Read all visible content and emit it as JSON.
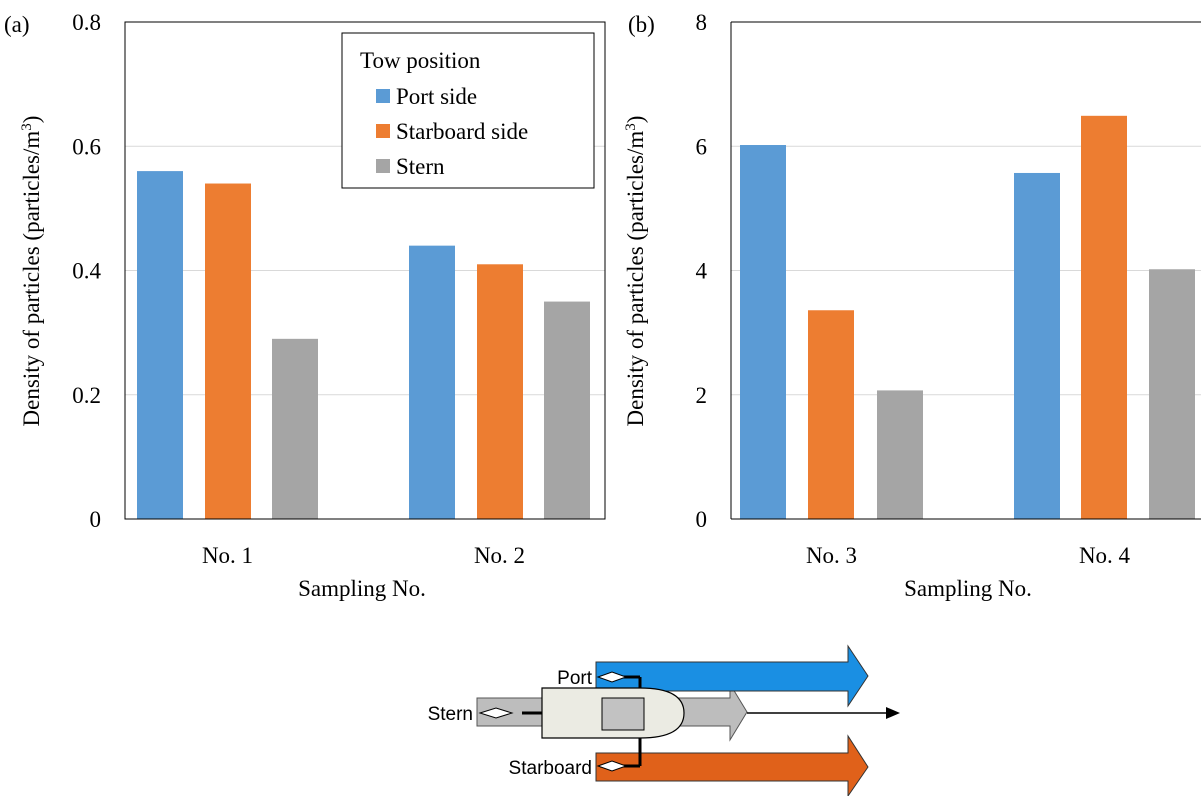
{
  "legend": {
    "title": "Tow position",
    "placement": "top-right of panel (a)"
  },
  "chart_data": [
    {
      "type": "bar",
      "panel_label": "(a)",
      "categories": [
        "No. 1",
        "No. 2"
      ],
      "series": [
        {
          "name": "Port side",
          "color": "#5B9BD5",
          "values": [
            0.56,
            0.44
          ]
        },
        {
          "name": "Starboard side",
          "color": "#ED7D31",
          "values": [
            0.54,
            0.41
          ]
        },
        {
          "name": "Stern",
          "color": "#A5A5A5",
          "values": [
            0.29,
            0.35
          ]
        }
      ],
      "xlabel": "Sampling No.",
      "ylabel_main": "Density of particles (particles/m",
      "ylabel_sup": "3",
      "ylabel_end": ")",
      "ylim": [
        0,
        0.8
      ],
      "yticks": [
        "0",
        "0.2",
        "0.4",
        "0.6",
        "0.8"
      ],
      "grid": true
    },
    {
      "type": "bar",
      "panel_label": "(b)",
      "categories": [
        "No. 3",
        "No. 4"
      ],
      "series": [
        {
          "name": "Port side",
          "color": "#5B9BD5",
          "values": [
            6.02,
            5.57
          ]
        },
        {
          "name": "Starboard side",
          "color": "#ED7D31",
          "values": [
            3.36,
            6.49
          ]
        },
        {
          "name": "Stern",
          "color": "#A5A5A5",
          "values": [
            2.07,
            4.02
          ]
        }
      ],
      "xlabel": "Sampling No.",
      "ylabel_main": "Density of particles (particles/m",
      "ylabel_sup": "3",
      "ylabel_end": ")",
      "ylim": [
        0,
        8
      ],
      "yticks": [
        "0",
        "2",
        "4",
        "6",
        "8"
      ],
      "grid": true
    }
  ],
  "diagram": {
    "labels": {
      "port": "Port",
      "stern": "Stern",
      "starboard": "Starboard"
    },
    "colors": {
      "port_arrow": "#1A8FE3",
      "starboard_arrow": "#E0611A",
      "stern_arrow": "#BDBDBD",
      "boat_fill": "#EBEBE3"
    }
  }
}
